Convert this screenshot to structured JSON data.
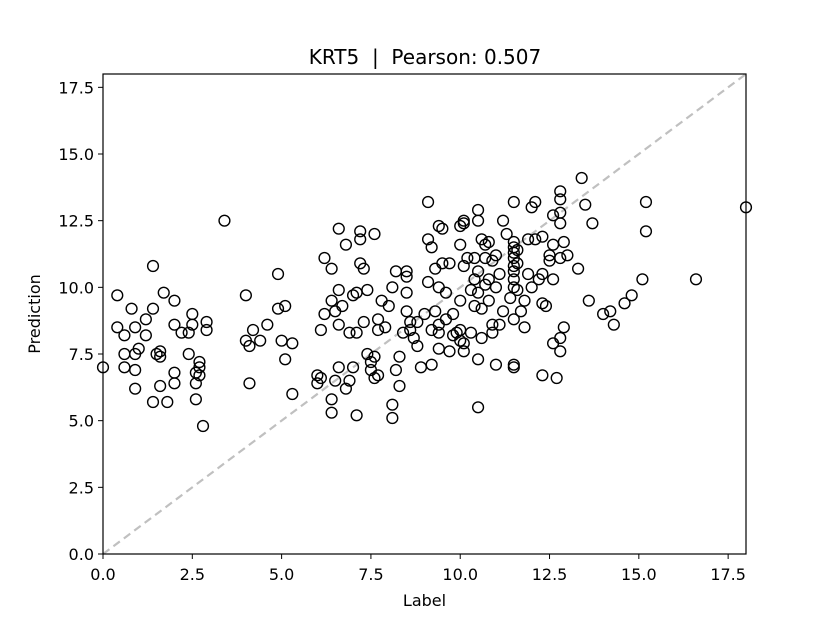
{
  "chart_data": {
    "type": "scatter",
    "title": "KRT5  |  Pearson: 0.507",
    "xlabel": "Label",
    "ylabel": "Prediction",
    "xlim": [
      0.0,
      18.0
    ],
    "ylim": [
      0.0,
      18.0
    ],
    "xticks": [
      "0.0",
      "2.5",
      "5.0",
      "7.5",
      "10.0",
      "12.5",
      "15.0",
      "17.5"
    ],
    "yticks": [
      "0.0",
      "2.5",
      "5.0",
      "7.5",
      "10.0",
      "12.5",
      "15.0",
      "17.5"
    ],
    "grid": false,
    "marker": "open-circle",
    "marker_color": "#000000",
    "reference_line": {
      "style": "dashed",
      "color": "#c0c0c0",
      "from": [
        0,
        0
      ],
      "to": [
        18,
        18
      ]
    },
    "points": [
      [
        0.0,
        7.0
      ],
      [
        0.4,
        9.7
      ],
      [
        0.4,
        8.5
      ],
      [
        0.6,
        7.5
      ],
      [
        0.6,
        7.0
      ],
      [
        0.6,
        8.2
      ],
      [
        0.8,
        9.2
      ],
      [
        0.9,
        8.5
      ],
      [
        0.9,
        7.5
      ],
      [
        0.9,
        6.9
      ],
      [
        0.9,
        6.2
      ],
      [
        1.0,
        7.7
      ],
      [
        1.2,
        8.8
      ],
      [
        1.2,
        8.2
      ],
      [
        1.4,
        10.8
      ],
      [
        1.4,
        9.2
      ],
      [
        1.4,
        5.7
      ],
      [
        1.5,
        7.5
      ],
      [
        1.6,
        7.6
      ],
      [
        1.6,
        7.4
      ],
      [
        1.6,
        6.3
      ],
      [
        1.7,
        9.8
      ],
      [
        1.8,
        5.7
      ],
      [
        2.0,
        9.5
      ],
      [
        2.0,
        8.6
      ],
      [
        2.0,
        6.8
      ],
      [
        2.0,
        6.4
      ],
      [
        2.2,
        8.3
      ],
      [
        2.4,
        8.3
      ],
      [
        2.4,
        7.5
      ],
      [
        2.5,
        9.0
      ],
      [
        2.5,
        8.6
      ],
      [
        2.6,
        6.8
      ],
      [
        2.6,
        6.4
      ],
      [
        2.6,
        5.8
      ],
      [
        2.7,
        7.2
      ],
      [
        2.7,
        7.0
      ],
      [
        2.7,
        6.7
      ],
      [
        2.8,
        4.8
      ],
      [
        2.9,
        8.7
      ],
      [
        2.9,
        8.4
      ],
      [
        3.4,
        12.5
      ],
      [
        4.0,
        9.7
      ],
      [
        4.0,
        8.0
      ],
      [
        4.1,
        7.8
      ],
      [
        4.1,
        6.4
      ],
      [
        4.2,
        8.4
      ],
      [
        4.4,
        8.0
      ],
      [
        4.6,
        8.6
      ],
      [
        4.9,
        10.5
      ],
      [
        4.9,
        9.2
      ],
      [
        5.0,
        8.0
      ],
      [
        5.1,
        9.3
      ],
      [
        5.1,
        7.3
      ],
      [
        5.3,
        7.9
      ],
      [
        5.3,
        6.0
      ],
      [
        6.0,
        6.7
      ],
      [
        6.0,
        6.4
      ],
      [
        6.1,
        8.4
      ],
      [
        6.1,
        6.6
      ],
      [
        6.2,
        11.1
      ],
      [
        6.2,
        9.0
      ],
      [
        6.4,
        10.7
      ],
      [
        6.4,
        9.5
      ],
      [
        6.4,
        5.8
      ],
      [
        6.4,
        5.3
      ],
      [
        6.5,
        9.1
      ],
      [
        6.5,
        6.5
      ],
      [
        6.6,
        12.2
      ],
      [
        6.6,
        9.9
      ],
      [
        6.6,
        8.6
      ],
      [
        6.6,
        7.0
      ],
      [
        6.7,
        9.3
      ],
      [
        6.8,
        11.6
      ],
      [
        6.8,
        6.2
      ],
      [
        6.9,
        8.3
      ],
      [
        6.9,
        6.5
      ],
      [
        7.0,
        9.7
      ],
      [
        7.0,
        7.0
      ],
      [
        7.1,
        9.8
      ],
      [
        7.1,
        8.3
      ],
      [
        7.1,
        5.2
      ],
      [
        7.2,
        12.1
      ],
      [
        7.2,
        11.8
      ],
      [
        7.2,
        10.9
      ],
      [
        7.3,
        10.7
      ],
      [
        7.3,
        8.7
      ],
      [
        7.4,
        9.9
      ],
      [
        7.4,
        7.5
      ],
      [
        7.5,
        7.2
      ],
      [
        7.5,
        6.9
      ],
      [
        7.6,
        12.0
      ],
      [
        7.6,
        6.6
      ],
      [
        7.6,
        7.4
      ],
      [
        7.7,
        8.8
      ],
      [
        7.7,
        8.4
      ],
      [
        7.7,
        6.7
      ],
      [
        7.8,
        9.5
      ],
      [
        7.9,
        8.5
      ],
      [
        8.0,
        9.3
      ],
      [
        8.1,
        10.0
      ],
      [
        8.1,
        5.6
      ],
      [
        8.1,
        5.1
      ],
      [
        8.2,
        10.6
      ],
      [
        8.2,
        6.9
      ],
      [
        8.3,
        7.4
      ],
      [
        8.3,
        6.3
      ],
      [
        8.4,
        8.3
      ],
      [
        8.5,
        10.6
      ],
      [
        8.5,
        10.4
      ],
      [
        8.5,
        9.8
      ],
      [
        8.5,
        9.1
      ],
      [
        8.6,
        8.7
      ],
      [
        8.6,
        8.4
      ],
      [
        8.7,
        8.1
      ],
      [
        8.8,
        8.7
      ],
      [
        8.8,
        7.8
      ],
      [
        8.9,
        7.0
      ],
      [
        9.0,
        9.0
      ],
      [
        9.1,
        13.2
      ],
      [
        9.1,
        11.8
      ],
      [
        9.1,
        10.2
      ],
      [
        9.2,
        11.5
      ],
      [
        9.2,
        8.4
      ],
      [
        9.2,
        7.1
      ],
      [
        9.3,
        10.7
      ],
      [
        9.3,
        9.1
      ],
      [
        9.4,
        12.3
      ],
      [
        9.4,
        10.0
      ],
      [
        9.4,
        8.6
      ],
      [
        9.4,
        8.3
      ],
      [
        9.4,
        7.7
      ],
      [
        9.5,
        12.2
      ],
      [
        9.5,
        10.9
      ],
      [
        9.6,
        9.8
      ],
      [
        9.6,
        8.8
      ],
      [
        9.7,
        10.9
      ],
      [
        9.7,
        7.6
      ],
      [
        9.8,
        9.0
      ],
      [
        9.8,
        8.2
      ],
      [
        9.9,
        8.3
      ],
      [
        10.0,
        12.3
      ],
      [
        10.0,
        11.6
      ],
      [
        10.0,
        9.5
      ],
      [
        10.0,
        8.4
      ],
      [
        10.0,
        8.0
      ],
      [
        10.1,
        12.5
      ],
      [
        10.1,
        12.4
      ],
      [
        10.1,
        10.8
      ],
      [
        10.1,
        7.9
      ],
      [
        10.1,
        7.6
      ],
      [
        10.2,
        11.1
      ],
      [
        10.3,
        9.9
      ],
      [
        10.3,
        8.3
      ],
      [
        10.4,
        11.1
      ],
      [
        10.4,
        10.3
      ],
      [
        10.4,
        9.3
      ],
      [
        10.5,
        12.9
      ],
      [
        10.5,
        12.5
      ],
      [
        10.5,
        10.6
      ],
      [
        10.5,
        9.8
      ],
      [
        10.5,
        7.3
      ],
      [
        10.5,
        5.5
      ],
      [
        10.6,
        11.8
      ],
      [
        10.6,
        9.2
      ],
      [
        10.6,
        8.1
      ],
      [
        10.7,
        11.6
      ],
      [
        10.7,
        11.1
      ],
      [
        10.7,
        10.1
      ],
      [
        10.8,
        11.7
      ],
      [
        10.8,
        10.3
      ],
      [
        10.8,
        9.5
      ],
      [
        10.9,
        11.0
      ],
      [
        10.9,
        8.6
      ],
      [
        10.9,
        8.3
      ],
      [
        11.0,
        11.2
      ],
      [
        11.0,
        10.0
      ],
      [
        11.0,
        7.1
      ],
      [
        11.1,
        10.5
      ],
      [
        11.1,
        8.6
      ],
      [
        11.2,
        12.5
      ],
      [
        11.2,
        9.1
      ],
      [
        11.3,
        12.0
      ],
      [
        11.4,
        9.6
      ],
      [
        11.5,
        13.2
      ],
      [
        11.5,
        11.7
      ],
      [
        11.5,
        11.5
      ],
      [
        11.5,
        11.3
      ],
      [
        11.5,
        11.1
      ],
      [
        11.5,
        10.8
      ],
      [
        11.5,
        10.6
      ],
      [
        11.5,
        10.3
      ],
      [
        11.5,
        10.0
      ],
      [
        11.5,
        8.8
      ],
      [
        11.5,
        7.1
      ],
      [
        11.5,
        7.0
      ],
      [
        11.6,
        11.4
      ],
      [
        11.6,
        10.9
      ],
      [
        11.6,
        9.9
      ],
      [
        11.7,
        9.1
      ],
      [
        11.8,
        9.5
      ],
      [
        11.8,
        8.5
      ],
      [
        11.9,
        11.8
      ],
      [
        11.9,
        10.5
      ],
      [
        12.0,
        13.0
      ],
      [
        12.0,
        10.0
      ],
      [
        12.1,
        13.2
      ],
      [
        12.1,
        11.8
      ],
      [
        12.2,
        10.3
      ],
      [
        12.3,
        11.9
      ],
      [
        12.3,
        10.5
      ],
      [
        12.3,
        9.4
      ],
      [
        12.3,
        6.7
      ],
      [
        12.4,
        9.3
      ],
      [
        12.5,
        11.2
      ],
      [
        12.5,
        11.0
      ],
      [
        12.6,
        12.7
      ],
      [
        12.6,
        11.6
      ],
      [
        12.6,
        10.3
      ],
      [
        12.6,
        7.9
      ],
      [
        12.7,
        6.6
      ],
      [
        12.8,
        13.6
      ],
      [
        12.8,
        13.3
      ],
      [
        12.8,
        12.8
      ],
      [
        12.8,
        12.4
      ],
      [
        12.8,
        11.1
      ],
      [
        12.8,
        8.1
      ],
      [
        12.8,
        7.6
      ],
      [
        12.9,
        11.7
      ],
      [
        12.9,
        8.5
      ],
      [
        13.0,
        11.2
      ],
      [
        13.3,
        10.7
      ],
      [
        13.4,
        14.1
      ],
      [
        13.5,
        13.1
      ],
      [
        13.6,
        9.5
      ],
      [
        13.7,
        12.4
      ],
      [
        14.0,
        9.0
      ],
      [
        14.2,
        9.1
      ],
      [
        14.3,
        8.6
      ],
      [
        14.6,
        9.4
      ],
      [
        14.8,
        9.7
      ],
      [
        15.1,
        10.3
      ],
      [
        15.2,
        13.2
      ],
      [
        15.2,
        12.1
      ],
      [
        16.6,
        10.3
      ],
      [
        18.0,
        13.0
      ]
    ]
  }
}
